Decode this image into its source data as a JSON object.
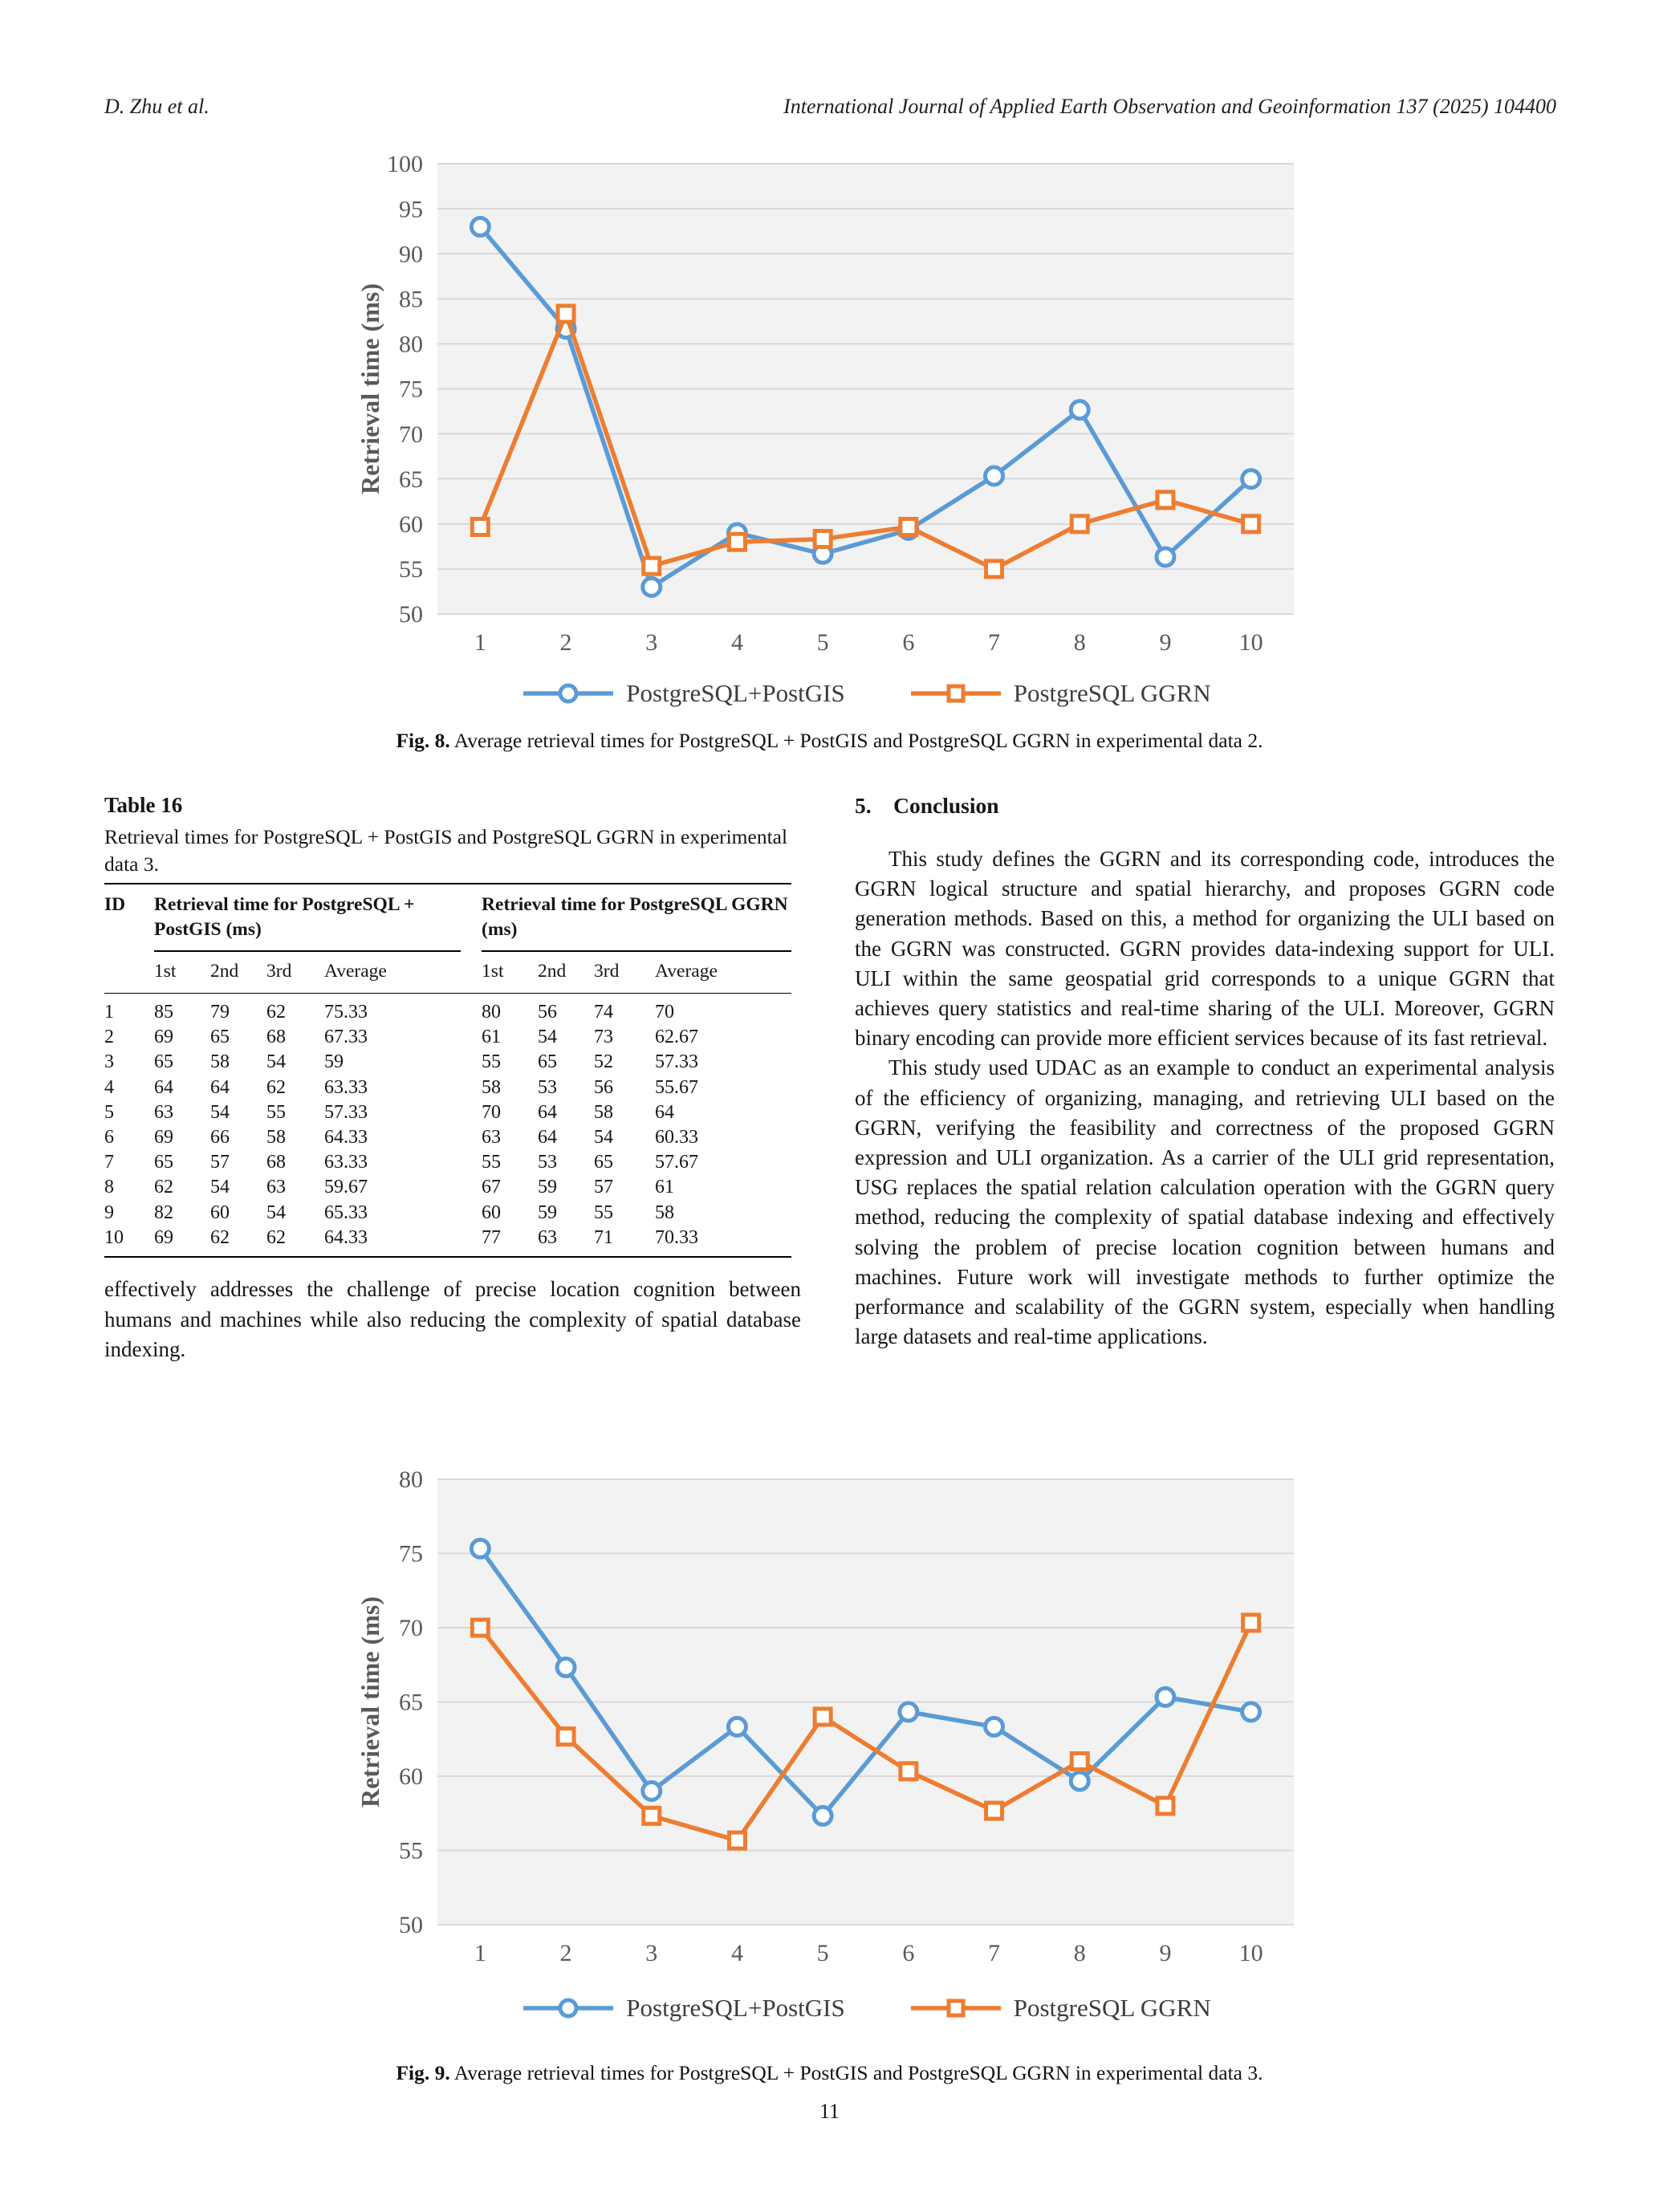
{
  "header": {
    "left": "D. Zhu et al.",
    "right": "International Journal of Applied Earth Observation and Geoinformation 137 (2025) 104400"
  },
  "figure8": {
    "caption_label": "Fig. 8.",
    "caption": "Average retrieval times for PostgreSQL + PostGIS and PostgreSQL GGRN in experimental data 2."
  },
  "figure9": {
    "caption_label": "Fig. 9.",
    "caption": "Average retrieval times for PostgreSQL + PostGIS and PostgreSQL GGRN in experimental data 3."
  },
  "table16": {
    "label": "Table 16",
    "caption": "Retrieval times for PostgreSQL + PostGIS and PostgreSQL GGRN in experimental data 3.",
    "columns": {
      "id": "ID",
      "group1": "Retrieval time for PostgreSQL + PostGIS (ms)",
      "group2": "Retrieval time for PostgreSQL GGRN (ms)",
      "sub": [
        "1st",
        "2nd",
        "3rd",
        "Average"
      ]
    },
    "rows": [
      {
        "id": "1",
        "g1": [
          "85",
          "79",
          "62",
          "75.33"
        ],
        "g2": [
          "80",
          "56",
          "74",
          "70"
        ]
      },
      {
        "id": "2",
        "g1": [
          "69",
          "65",
          "68",
          "67.33"
        ],
        "g2": [
          "61",
          "54",
          "73",
          "62.67"
        ]
      },
      {
        "id": "3",
        "g1": [
          "65",
          "58",
          "54",
          "59"
        ],
        "g2": [
          "55",
          "65",
          "52",
          "57.33"
        ]
      },
      {
        "id": "4",
        "g1": [
          "64",
          "64",
          "62",
          "63.33"
        ],
        "g2": [
          "58",
          "53",
          "56",
          "55.67"
        ]
      },
      {
        "id": "5",
        "g1": [
          "63",
          "54",
          "55",
          "57.33"
        ],
        "g2": [
          "70",
          "64",
          "58",
          "64"
        ]
      },
      {
        "id": "6",
        "g1": [
          "69",
          "66",
          "58",
          "64.33"
        ],
        "g2": [
          "63",
          "64",
          "54",
          "60.33"
        ]
      },
      {
        "id": "7",
        "g1": [
          "65",
          "57",
          "68",
          "63.33"
        ],
        "g2": [
          "55",
          "53",
          "65",
          "57.67"
        ]
      },
      {
        "id": "8",
        "g1": [
          "62",
          "54",
          "63",
          "59.67"
        ],
        "g2": [
          "67",
          "59",
          "57",
          "61"
        ]
      },
      {
        "id": "9",
        "g1": [
          "82",
          "60",
          "54",
          "65.33"
        ],
        "g2": [
          "60",
          "59",
          "55",
          "58"
        ]
      },
      {
        "id": "10",
        "g1": [
          "69",
          "62",
          "62",
          "64.33"
        ],
        "g2": [
          "77",
          "63",
          "71",
          "70.33"
        ]
      }
    ]
  },
  "left_column_text": "effectively addresses the challenge of precise location cognition between humans and machines while also reducing the complexity of spatial database indexing.",
  "conclusion": {
    "heading": "5. Conclusion",
    "paragraphs": [
      "This study defines the GGRN and its corresponding code, introduces the GGRN logical structure and spatial hierarchy, and proposes GGRN code generation methods. Based on this, a method for organizing the ULI based on the GGRN was constructed. GGRN provides data-indexing support for ULI. ULI within the same geospatial grid corresponds to a unique GGRN that achieves query statistics and real-time sharing of the ULI. Moreover, GGRN binary encoding can provide more efficient services because of its fast retrieval.",
      "This study used UDAC as an example to conduct an experimental analysis of the efficiency of organizing, managing, and retrieving ULI based on the GGRN, verifying the feasibility and correctness of the proposed GGRN expression and ULI organization. As a carrier of the ULI grid representation, USG replaces the spatial relation calculation operation with the GGRN query method, reducing the complexity of spatial database indexing and effectively solving the problem of precise location cognition between humans and machines. Future work will investigate methods to further optimize the performance and scalability of the GGRN system, especially when handling large datasets and real-time applications."
    ]
  },
  "page_number": "11",
  "colors": {
    "series_blue": "#5B9BD5",
    "series_orange": "#ED7D31",
    "gridline": "#D9D9D9",
    "plot_bg": "#F2F2F2",
    "tick_text": "#595959"
  },
  "chart_data": [
    {
      "id": "fig8",
      "type": "line",
      "title": "",
      "xlabel": "",
      "ylabel": "Retrieval time (ms)",
      "categories": [
        "1",
        "2",
        "3",
        "4",
        "5",
        "6",
        "7",
        "8",
        "9",
        "10"
      ],
      "ylim": [
        50,
        100
      ],
      "ystep": 5,
      "grid": true,
      "legend_position": "bottom",
      "series": [
        {
          "name": "PostgreSQL+PostGIS",
          "marker": "circle",
          "color": "#5B9BD5",
          "values": [
            93,
            81.67,
            53,
            59,
            56.67,
            59.33,
            65.33,
            72.67,
            56.33,
            65
          ]
        },
        {
          "name": "PostgreSQL GGRN",
          "marker": "square",
          "color": "#ED7D31",
          "values": [
            59.67,
            83.33,
            55.33,
            58,
            58.33,
            59.67,
            55,
            60,
            62.67,
            60
          ]
        }
      ]
    },
    {
      "id": "fig9",
      "type": "line",
      "title": "",
      "xlabel": "",
      "ylabel": "Retrieval time (ms)",
      "categories": [
        "1",
        "2",
        "3",
        "4",
        "5",
        "6",
        "7",
        "8",
        "9",
        "10"
      ],
      "ylim": [
        50,
        80
      ],
      "ystep": 5,
      "grid": true,
      "legend_position": "bottom",
      "series": [
        {
          "name": "PostgreSQL+PostGIS",
          "marker": "circle",
          "color": "#5B9BD5",
          "values": [
            75.33,
            67.33,
            59,
            63.33,
            57.33,
            64.33,
            63.33,
            59.67,
            65.33,
            64.33
          ]
        },
        {
          "name": "PostgreSQL GGRN",
          "marker": "square",
          "color": "#ED7D31",
          "values": [
            70,
            62.67,
            57.33,
            55.67,
            64,
            60.33,
            57.67,
            61,
            58,
            70.33
          ]
        }
      ]
    }
  ]
}
